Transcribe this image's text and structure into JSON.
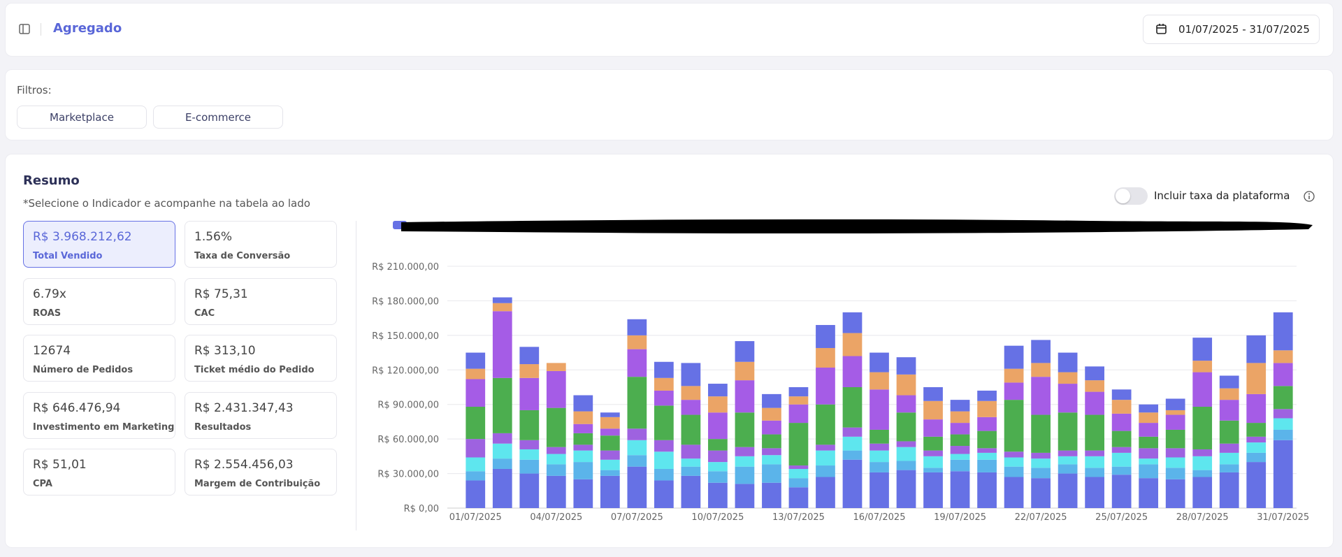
{
  "header": {
    "title": "Agregado",
    "date_range": "01/07/2025 - 31/07/2025"
  },
  "filters": {
    "label": "Filtros:",
    "options": [
      "Marketplace",
      "E-commerce"
    ]
  },
  "summary": {
    "title": "Resumo",
    "subtitle": "*Selecione o Indicador e acompanhe na tabela ao lado",
    "cards": [
      {
        "value": "R$ 3.968.212,62",
        "label": "Total Vendido"
      },
      {
        "value": "1.56%",
        "label": "Taxa de Conversão"
      },
      {
        "value": "6.79x",
        "label": "ROAS"
      },
      {
        "value": "R$ 75,31",
        "label": "CAC"
      },
      {
        "value": "12674",
        "label": "Número de Pedidos"
      },
      {
        "value": "R$ 313,10",
        "label": "Ticket médio do Pedido"
      },
      {
        "value": "R$ 646.476,94",
        "label": "Investimento em Marketing"
      },
      {
        "value": "R$ 2.431.347,43",
        "label": "Resultados"
      },
      {
        "value": "R$ 51,01",
        "label": "CPA"
      },
      {
        "value": "R$ 2.554.456,03",
        "label": "Margem de Contribuição"
      }
    ]
  },
  "toggle": {
    "label": "Incluir taxa da plataforma"
  },
  "chart_data": {
    "type": "stacked_bar",
    "categories": [
      "01/07/2025",
      null,
      null,
      "04/07/2025",
      null,
      null,
      "07/07/2025",
      null,
      null,
      "10/07/2025",
      null,
      null,
      "13/07/2025",
      null,
      null,
      "16/07/2025",
      null,
      null,
      "19/07/2025",
      null,
      null,
      "22/07/2025",
      null,
      null,
      "25/07/2025",
      null,
      null,
      "28/07/2025",
      null,
      null,
      "31/07/2025"
    ],
    "ylim": [
      0,
      210000
    ],
    "yticks": [
      {
        "value": 0,
        "label": "R$ 0,00"
      },
      {
        "value": 30000,
        "label": "R$ 30.000,00"
      },
      {
        "value": 60000,
        "label": "R$ 60.000,00"
      },
      {
        "value": 90000,
        "label": "R$ 90.000,00"
      },
      {
        "value": 120000,
        "label": "R$ 120.000,00"
      },
      {
        "value": 150000,
        "label": "R$ 150.000,00"
      },
      {
        "value": 180000,
        "label": "R$ 180.000,00"
      },
      {
        "value": 210000,
        "label": "R$ 210.000,00"
      }
    ],
    "grid": true,
    "series": [
      {
        "color": "#6671e5",
        "values": [
          24000,
          34000,
          30000,
          28000,
          25000,
          28000,
          36000,
          24000,
          28000,
          22000,
          21000,
          22000,
          18000,
          27000,
          42000,
          31000,
          33000,
          31000,
          32000,
          31000,
          27000,
          26000,
          30000,
          27000,
          29000,
          26000,
          25000,
          27000,
          31000,
          40000,
          59000
        ]
      },
      {
        "color": "#5bb4ea",
        "values": [
          8000,
          9000,
          12000,
          10000,
          15000,
          5000,
          10000,
          10000,
          8000,
          10000,
          15000,
          16000,
          8000,
          10000,
          8000,
          9000,
          8000,
          4000,
          10000,
          11000,
          9000,
          9000,
          8000,
          8000,
          7000,
          12000,
          10000,
          6000,
          7000,
          8000,
          9000
        ]
      },
      {
        "color": "#5ee6ee",
        "values": [
          12000,
          13000,
          9000,
          9000,
          10000,
          9000,
          13000,
          15000,
          7000,
          8000,
          9000,
          8000,
          8000,
          13000,
          12000,
          10000,
          12000,
          10000,
          5000,
          6000,
          8000,
          8000,
          7000,
          10000,
          12000,
          5000,
          9000,
          12000,
          10000,
          9000,
          10000
        ]
      },
      {
        "color": "#9e62e0",
        "values": [
          16000,
          9000,
          8000,
          6000,
          5000,
          8000,
          10000,
          10000,
          12000,
          10000,
          8000,
          6000,
          3000,
          5000,
          8000,
          6000,
          5000,
          5000,
          7000,
          4000,
          5000,
          5000,
          5000,
          5000,
          5000,
          9000,
          8000,
          6000,
          8000,
          5000,
          8000
        ]
      },
      {
        "color": "#4cae4f",
        "values": [
          28000,
          48000,
          26000,
          34000,
          10000,
          13000,
          45000,
          30000,
          26000,
          10000,
          30000,
          12000,
          37000,
          35000,
          35000,
          12000,
          25000,
          12000,
          10000,
          15000,
          45000,
          33000,
          33000,
          31000,
          14000,
          10000,
          16000,
          37000,
          20000,
          12000,
          20000
        ]
      },
      {
        "color": "#a55ce6",
        "values": [
          24000,
          58000,
          28000,
          32000,
          8000,
          6000,
          24000,
          13000,
          13000,
          23000,
          28000,
          12000,
          16000,
          32000,
          27000,
          35000,
          15000,
          15000,
          10000,
          12000,
          15000,
          33000,
          25000,
          20000,
          15000,
          12000,
          13000,
          30000,
          18000,
          25000,
          20000
        ]
      },
      {
        "color": "#eba466",
        "values": [
          9000,
          7000,
          12000,
          7000,
          11000,
          10000,
          12000,
          11000,
          12000,
          14000,
          16000,
          11000,
          7000,
          17000,
          20000,
          15000,
          18000,
          16000,
          10000,
          14000,
          12000,
          12000,
          10000,
          10000,
          12000,
          9000,
          4000,
          10000,
          10000,
          27000,
          11000
        ]
      },
      {
        "color": "#6671e5",
        "values": [
          14000,
          5000,
          15000,
          0,
          14000,
          4000,
          14000,
          14000,
          20000,
          11000,
          18000,
          12000,
          8000,
          20000,
          18000,
          17000,
          15000,
          12000,
          10000,
          9000,
          20000,
          20000,
          17000,
          12000,
          9000,
          7000,
          10000,
          20000,
          11000,
          24000,
          33000
        ]
      }
    ]
  }
}
